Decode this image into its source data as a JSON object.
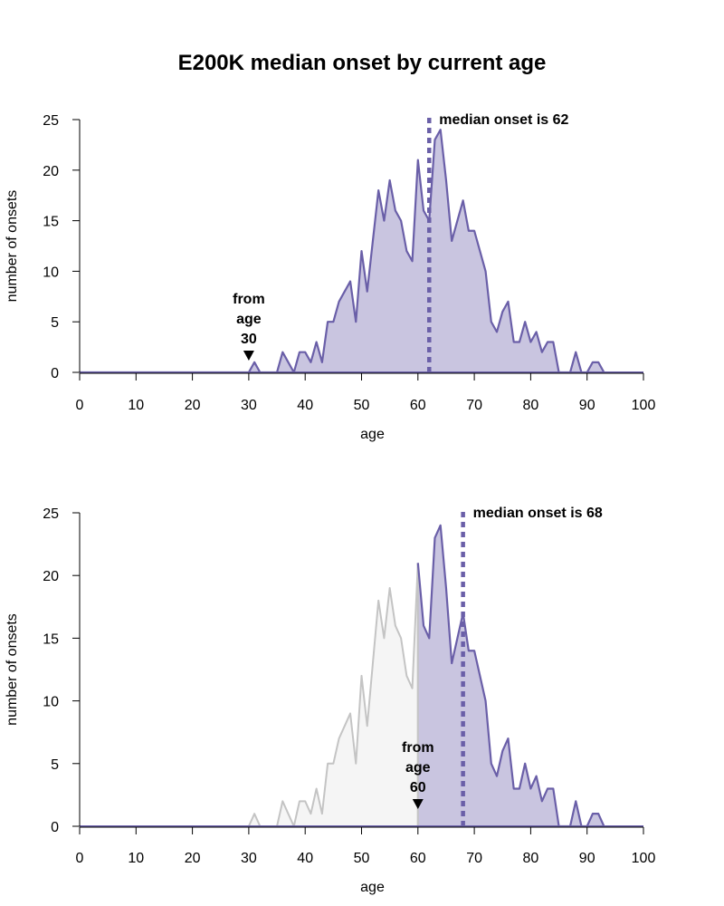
{
  "title": "E200K median onset by current age",
  "colors": {
    "accent": "#6a5fa8",
    "fill": "#c9c5e0",
    "excluded_line": "#c4c4c4",
    "excluded_fill": "#f5f5f5",
    "axis": "#000000"
  },
  "chart_data": [
    {
      "type": "area",
      "title": "",
      "xlabel": "age",
      "ylabel": "number of onsets",
      "xlim": [
        0,
        100
      ],
      "ylim": [
        0,
        25
      ],
      "x_ticks": [
        0,
        10,
        20,
        30,
        40,
        50,
        60,
        70,
        80,
        90,
        100
      ],
      "y_ticks": [
        0,
        5,
        10,
        15,
        20,
        25
      ],
      "grid": false,
      "from_age": 30,
      "from_label_lines": [
        "from",
        "age",
        "30"
      ],
      "median_onset": 62,
      "median_label": "median onset is 62",
      "x": [
        0,
        1,
        2,
        3,
        4,
        5,
        6,
        7,
        8,
        9,
        10,
        11,
        12,
        13,
        14,
        15,
        16,
        17,
        18,
        19,
        20,
        21,
        22,
        23,
        24,
        25,
        26,
        27,
        28,
        29,
        30,
        31,
        32,
        33,
        34,
        35,
        36,
        37,
        38,
        39,
        40,
        41,
        42,
        43,
        44,
        45,
        46,
        47,
        48,
        49,
        50,
        51,
        52,
        53,
        54,
        55,
        56,
        57,
        58,
        59,
        60,
        61,
        62,
        63,
        64,
        65,
        66,
        67,
        68,
        69,
        70,
        71,
        72,
        73,
        74,
        75,
        76,
        77,
        78,
        79,
        80,
        81,
        82,
        83,
        84,
        85,
        86,
        87,
        88,
        89,
        90,
        91,
        92,
        93
      ],
      "values": [
        0,
        0,
        0,
        0,
        0,
        0,
        0,
        0,
        0,
        0,
        0,
        0,
        0,
        0,
        0,
        0,
        0,
        0,
        0,
        0,
        0,
        0,
        0,
        0,
        0,
        0,
        0,
        0,
        0,
        0,
        0,
        1,
        0,
        0,
        0,
        0,
        2,
        1,
        0,
        2,
        2,
        1,
        3,
        1,
        5,
        5,
        7,
        8,
        9,
        5,
        12,
        8,
        13,
        18,
        15,
        19,
        16,
        15,
        12,
        11,
        21,
        16,
        15,
        23,
        24,
        19,
        13,
        15,
        17,
        14,
        14,
        12,
        10,
        5,
        4,
        6,
        7,
        3,
        3,
        5,
        3,
        4,
        2,
        3,
        3,
        0,
        0,
        0,
        2,
        0,
        0,
        1,
        1,
        0
      ]
    },
    {
      "type": "area",
      "title": "",
      "xlabel": "age",
      "ylabel": "number of onsets",
      "xlim": [
        0,
        100
      ],
      "ylim": [
        0,
        25
      ],
      "x_ticks": [
        0,
        10,
        20,
        30,
        40,
        50,
        60,
        70,
        80,
        90,
        100
      ],
      "y_ticks": [
        0,
        5,
        10,
        15,
        20,
        25
      ],
      "grid": false,
      "from_age": 60,
      "from_label_lines": [
        "from",
        "age",
        "60"
      ],
      "median_onset": 68,
      "median_label": "median onset is 68",
      "x": [
        0,
        1,
        2,
        3,
        4,
        5,
        6,
        7,
        8,
        9,
        10,
        11,
        12,
        13,
        14,
        15,
        16,
        17,
        18,
        19,
        20,
        21,
        22,
        23,
        24,
        25,
        26,
        27,
        28,
        29,
        30,
        31,
        32,
        33,
        34,
        35,
        36,
        37,
        38,
        39,
        40,
        41,
        42,
        43,
        44,
        45,
        46,
        47,
        48,
        49,
        50,
        51,
        52,
        53,
        54,
        55,
        56,
        57,
        58,
        59,
        60,
        61,
        62,
        63,
        64,
        65,
        66,
        67,
        68,
        69,
        70,
        71,
        72,
        73,
        74,
        75,
        76,
        77,
        78,
        79,
        80,
        81,
        82,
        83,
        84,
        85,
        86,
        87,
        88,
        89,
        90,
        91,
        92,
        93
      ],
      "values": [
        0,
        0,
        0,
        0,
        0,
        0,
        0,
        0,
        0,
        0,
        0,
        0,
        0,
        0,
        0,
        0,
        0,
        0,
        0,
        0,
        0,
        0,
        0,
        0,
        0,
        0,
        0,
        0,
        0,
        0,
        0,
        1,
        0,
        0,
        0,
        0,
        2,
        1,
        0,
        2,
        2,
        1,
        3,
        1,
        5,
        5,
        7,
        8,
        9,
        5,
        12,
        8,
        13,
        18,
        15,
        19,
        16,
        15,
        12,
        11,
        21,
        16,
        15,
        23,
        24,
        19,
        13,
        15,
        17,
        14,
        14,
        12,
        10,
        5,
        4,
        6,
        7,
        3,
        3,
        5,
        3,
        4,
        2,
        3,
        3,
        0,
        0,
        0,
        2,
        0,
        0,
        1,
        1,
        0
      ]
    }
  ]
}
